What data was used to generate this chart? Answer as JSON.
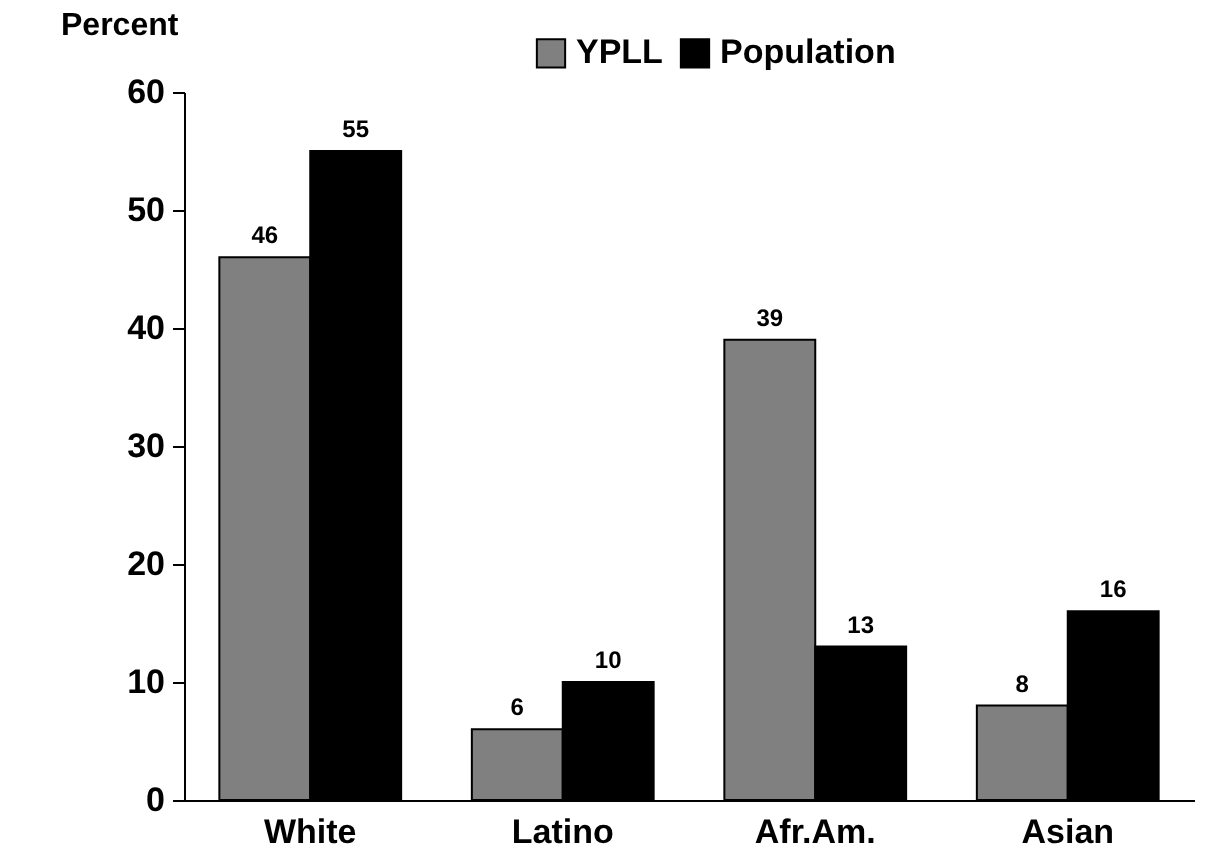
{
  "chart_data": {
    "type": "bar",
    "ylabel": "Percent",
    "categories": [
      "White",
      "Latino",
      "Afr.Am.",
      "Asian"
    ],
    "series": [
      {
        "name": "YPLL",
        "color": "#808080",
        "values": [
          46,
          6,
          39,
          8
        ]
      },
      {
        "name": "Population",
        "color": "#000000",
        "values": [
          55,
          10,
          13,
          16
        ]
      }
    ],
    "ylim": [
      0,
      60
    ],
    "yticks": [
      0,
      10,
      20,
      30,
      40,
      50,
      60
    ],
    "grid": false,
    "legend": "top",
    "data_labels": true
  }
}
